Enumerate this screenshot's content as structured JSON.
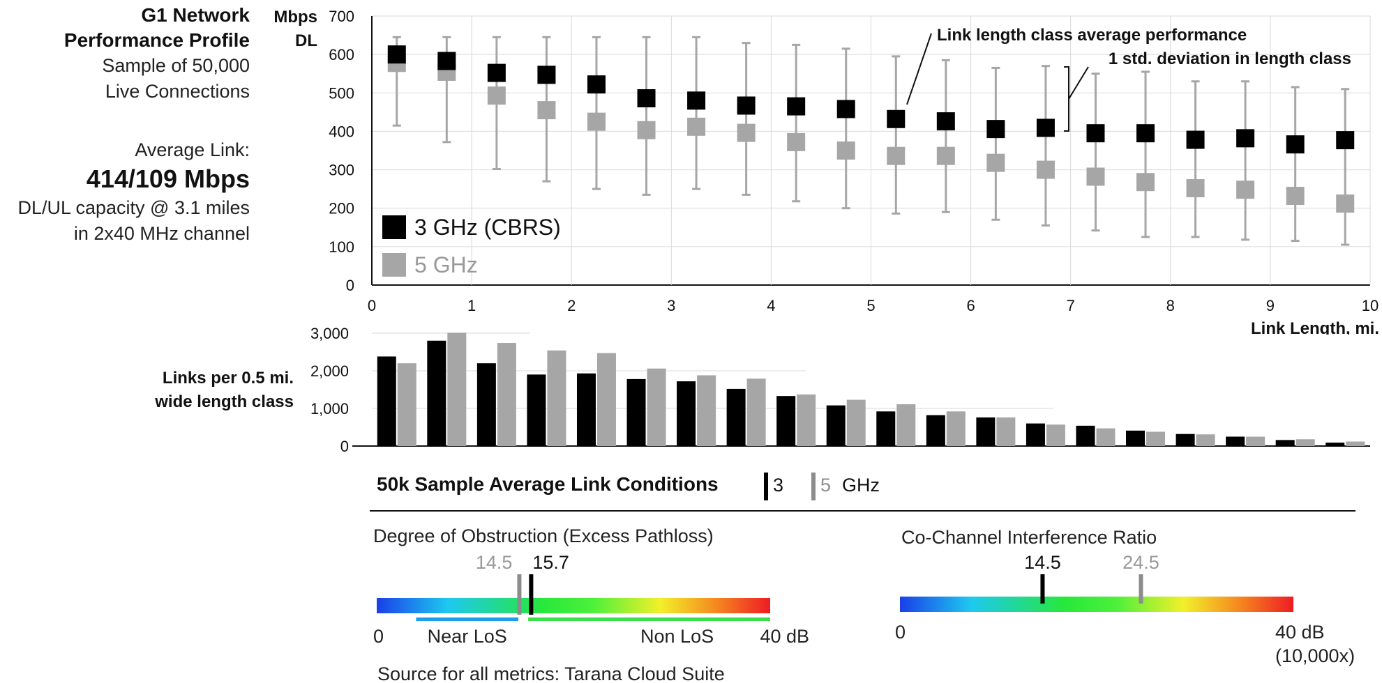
{
  "left_panel": {
    "title_line1": "G1 Network",
    "title_line2": "Performance Profile",
    "sample_line1": "Sample of 50,000",
    "sample_line2": "Live Connections",
    "avg_label": "Average Link:",
    "avg_value": "414/109",
    "avg_unit": "Mbps",
    "capacity_line1": "DL/UL capacity @ 3.1 miles",
    "capacity_line2": "in 2x40 MHz channel"
  },
  "chart_data": [
    {
      "type": "scatter",
      "ylabel_line1": "Mbps",
      "ylabel_line2": "DL",
      "xlabel": "Link Length, mi.",
      "xlim": [
        0,
        10
      ],
      "ylim": [
        0,
        700
      ],
      "x_ticks": [
        "0",
        "1",
        "2",
        "3",
        "4",
        "5",
        "6",
        "7",
        "8",
        "9",
        "10"
      ],
      "y_ticks": [
        "0",
        "100",
        "200",
        "300",
        "400",
        "500",
        "600",
        "700"
      ],
      "grid": true,
      "legend_placement": "bottom-left",
      "x": [
        0.25,
        0.75,
        1.25,
        1.75,
        2.25,
        2.75,
        3.25,
        3.75,
        4.25,
        4.75,
        5.25,
        5.75,
        6.25,
        6.75,
        7.25,
        7.75,
        8.25,
        8.75,
        9.25,
        9.75
      ],
      "series": [
        {
          "name": "3 GHz (CBRS)",
          "color": "#000000",
          "values": [
            600,
            583,
            552,
            547,
            522,
            486,
            480,
            467,
            465,
            458,
            432,
            426,
            406,
            409,
            395,
            395,
            378,
            382,
            366,
            377
          ],
          "std_low": [
            415,
            372,
            302,
            270,
            250,
            235,
            250,
            235,
            218,
            200,
            186,
            190,
            170,
            155,
            142,
            125,
            125,
            118,
            115,
            105
          ],
          "std_high": [
            645,
            645,
            645,
            645,
            645,
            645,
            645,
            630,
            625,
            615,
            595,
            585,
            565,
            570,
            550,
            555,
            530,
            530,
            515,
            510
          ]
        },
        {
          "name": "5 GHz",
          "color": "#a6a6a6",
          "values": [
            578,
            555,
            493,
            455,
            425,
            403,
            412,
            396,
            372,
            350,
            336,
            336,
            318,
            300,
            282,
            268,
            252,
            248,
            232,
            212
          ]
        }
      ],
      "annotations": {
        "avg": "Link length class average performance",
        "std": "1 std. deviation in length class"
      }
    },
    {
      "type": "bar",
      "ylabel_line1": "Links per 0.5 mi.",
      "ylabel_line2": "wide length class",
      "ylim": [
        0,
        3000
      ],
      "y_ticks": [
        "0",
        "1,000",
        "2,000",
        "3,000"
      ],
      "series": [
        {
          "name": "3 GHz (CBRS)",
          "color": "#000000",
          "values": [
            2380,
            2800,
            2200,
            1900,
            1930,
            1780,
            1720,
            1520,
            1330,
            1080,
            920,
            820,
            760,
            600,
            540,
            410,
            320,
            250,
            160,
            90
          ]
        },
        {
          "name": "5 GHz",
          "color": "#a6a6a6",
          "values": [
            2200,
            3010,
            2740,
            2540,
            2470,
            2060,
            1880,
            1790,
            1370,
            1230,
            1110,
            920,
            760,
            570,
            470,
            380,
            310,
            250,
            180,
            120
          ]
        }
      ]
    }
  ],
  "conditions": {
    "title": "50k Sample Average Link Conditions",
    "legend_3": "3",
    "legend_5": "5",
    "legend_unit": "GHz",
    "obstruction": {
      "title": "Degree of Obstruction (Excess Pathloss)",
      "min_label": "0",
      "max_label": "40 dB",
      "range_max": 40,
      "value_3": 15.7,
      "value_3_label": "15.7",
      "value_5": 14.5,
      "value_5_label": "14.5",
      "near_los_label": "Near LoS",
      "non_los_label": "Non LoS",
      "near_los_range": [
        4,
        14.4
      ],
      "non_los_range": [
        15.4,
        40
      ],
      "near_los_color": "#1a9fe8",
      "non_los_color": "#3adf4a"
    },
    "interference": {
      "title": "Co-Channel Interference Ratio",
      "min_label": "0",
      "max_label": "40 dB",
      "max_label_line2": "(10,000x)",
      "range_max": 40,
      "value_3": 14.5,
      "value_3_label": "14.5",
      "value_5": 24.5,
      "value_5_label": "24.5"
    },
    "color_3": "#000000",
    "color_5": "#8c8c8c"
  },
  "footer": {
    "source": "Source for all metrics:  Tarana Cloud Suite"
  }
}
